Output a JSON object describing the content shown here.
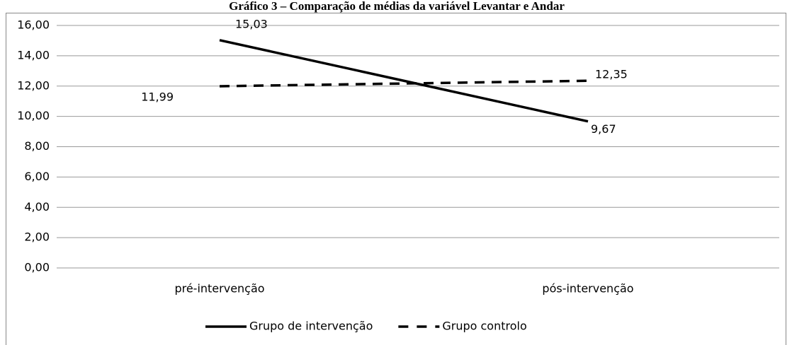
{
  "chart_data": {
    "type": "line",
    "title": "Gráfico 3 – Comparação de médias da variável Levantar e Andar",
    "categories": [
      "pré-intervenção",
      "pós-intervenção"
    ],
    "series": [
      {
        "name": "Grupo de intervenção",
        "color": "#000000",
        "line_style": "solid",
        "values": [
          15.03,
          9.67
        ],
        "value_labels": [
          "15,03",
          "9,67"
        ]
      },
      {
        "name": "Grupo controlo",
        "color": "#000000",
        "line_style": "dashed",
        "values": [
          11.99,
          12.35
        ],
        "value_labels": [
          "11,99",
          "12,35"
        ]
      }
    ],
    "ylim": [
      0,
      16
    ],
    "yticks": [
      {
        "value": 0,
        "label": "0,00"
      },
      {
        "value": 2,
        "label": "2,00"
      },
      {
        "value": 4,
        "label": "4,00"
      },
      {
        "value": 6,
        "label": "6,00"
      },
      {
        "value": 8,
        "label": "8,00"
      },
      {
        "value": 10,
        "label": "10,00"
      },
      {
        "value": 12,
        "label": "12,00"
      },
      {
        "value": 14,
        "label": "14,00"
      },
      {
        "value": 16,
        "label": "16,00"
      }
    ],
    "grid": true,
    "legend": "bottom"
  }
}
